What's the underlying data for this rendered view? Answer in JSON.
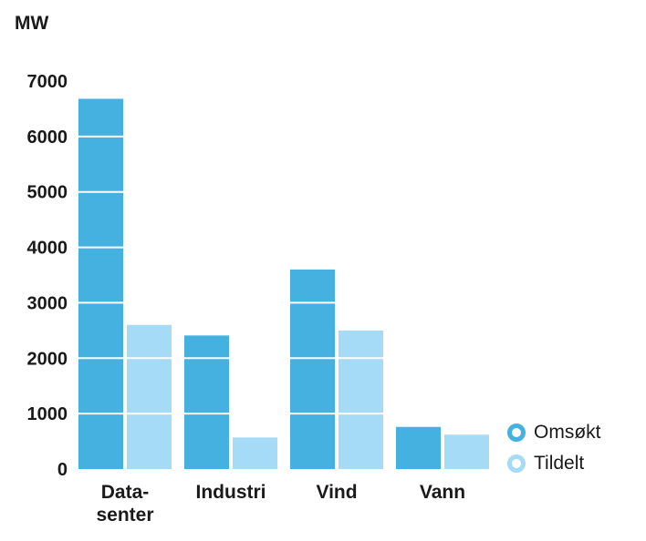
{
  "chart_data": {
    "type": "bar",
    "ylabel": "MW",
    "ylim": [
      0,
      7000
    ],
    "yticks": [
      "0",
      "1000",
      "2000",
      "3000",
      "4000",
      "5000",
      "6000",
      "7000"
    ],
    "categories": [
      [
        "Data-",
        "senter"
      ],
      [
        "Industri"
      ],
      [
        "Vind"
      ],
      [
        "Vann"
      ]
    ],
    "series": [
      {
        "name": "Omsøkt",
        "color": "#45b1e1",
        "values": [
          6680,
          2410,
          3600,
          760
        ]
      },
      {
        "name": "Tildelt",
        "color": "#a6dbf7",
        "values": [
          2600,
          570,
          2500,
          620
        ]
      }
    ],
    "grid": "horizontal white lines drawn over bars",
    "legend": "right"
  }
}
